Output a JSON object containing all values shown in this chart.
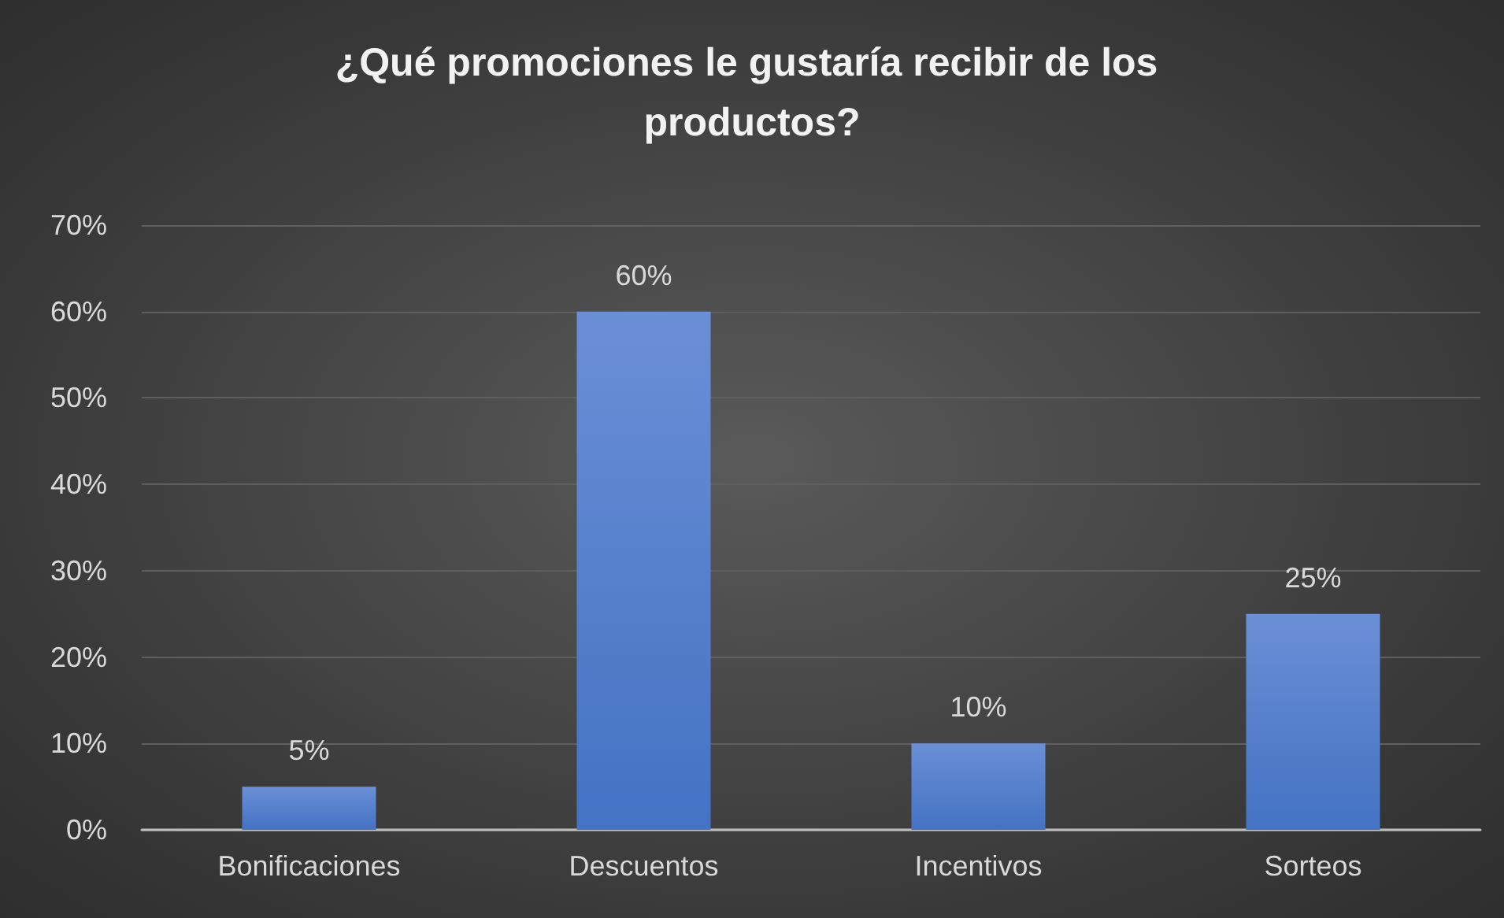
{
  "chart_data": {
    "type": "bar",
    "title": "¿Qué promociones le gustaría recibir de los productos?",
    "categories": [
      "Bonificaciones",
      "Descuentos",
      "Incentivos",
      "Sorteos"
    ],
    "values": [
      5,
      60,
      10,
      25
    ],
    "color": "#4472c4",
    "value_labels": [
      "5%",
      "60%",
      "10%",
      "25%"
    ],
    "ylim": [
      0,
      70
    ],
    "yticks": [
      {
        "value": 0,
        "label": "0%"
      },
      {
        "value": 10,
        "label": "10%"
      },
      {
        "value": 20,
        "label": "20%"
      },
      {
        "value": 30,
        "label": "30%"
      },
      {
        "value": 40,
        "label": "40%"
      },
      {
        "value": 50,
        "label": "50%"
      },
      {
        "value": 60,
        "label": "60%"
      },
      {
        "value": 70,
        "label": "70%"
      }
    ],
    "grid": "y"
  }
}
